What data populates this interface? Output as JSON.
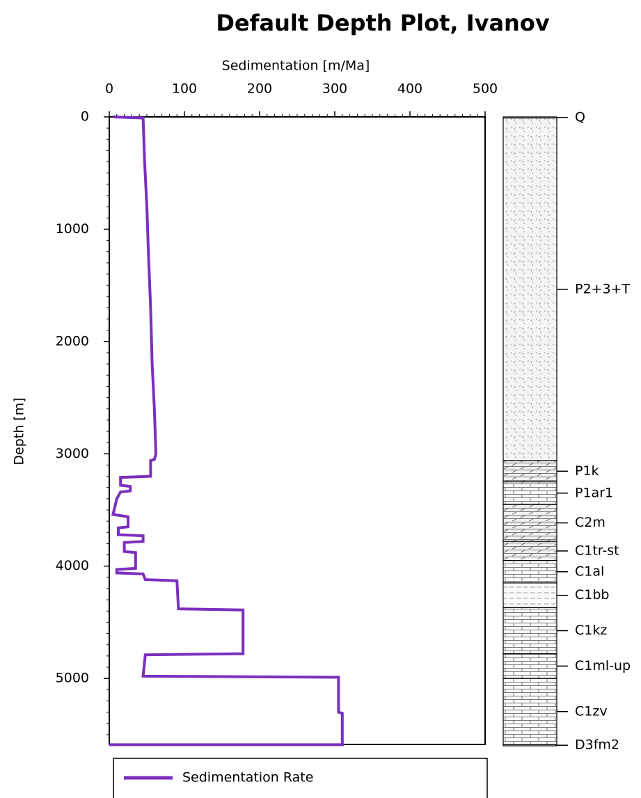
{
  "chart_data": {
    "type": "depth_line",
    "title": "Default Depth Plot, Ivanov",
    "x_label": "Sedimentation [m/Ma]",
    "y_label": "Depth [m]",
    "xlim": [
      0,
      500
    ],
    "xticks": [
      0,
      100,
      200,
      300,
      400,
      500
    ],
    "ylim": [
      0,
      5600
    ],
    "yticks": [
      0,
      1000,
      2000,
      3000,
      4000,
      5000
    ],
    "y_inverted": true,
    "legend": "bottom",
    "depth": [
      0,
      10,
      400,
      800,
      1200,
      1700,
      2200,
      2600,
      3000,
      3050,
      3060,
      3200,
      3210,
      3280,
      3290,
      3330,
      3340,
      3400,
      3540,
      3550,
      3560,
      3650,
      3660,
      3720,
      3730,
      3780,
      3790,
      3870,
      3880,
      4020,
      4030,
      4060,
      4070,
      4120,
      4130,
      4380,
      4390,
      4780,
      4790,
      4980,
      4990,
      5300,
      5310,
      5590,
      5590
    ],
    "series": [
      {
        "name": "Sedimentation Rate",
        "color": "#7b2fbe",
        "values": [
          5,
          45,
          47,
          50,
          52,
          55,
          57,
          60,
          62,
          60,
          55,
          55,
          15,
          15,
          28,
          28,
          15,
          10,
          5,
          15,
          25,
          25,
          12,
          12,
          45,
          45,
          20,
          20,
          35,
          35,
          10,
          10,
          45,
          48,
          90,
          92,
          178,
          178,
          48,
          45,
          305,
          305,
          310,
          310,
          0
        ]
      }
    ],
    "formations": [
      {
        "name": "Q",
        "top": 0,
        "base": 10,
        "lithology": "sand"
      },
      {
        "name": "P2+3+T",
        "top": 10,
        "base": 3060,
        "lithology": "sand"
      },
      {
        "name": "P1k",
        "top": 3060,
        "base": 3250,
        "lithology": "marl"
      },
      {
        "name": "P1ar1",
        "top": 3250,
        "base": 3450,
        "lithology": "limestone"
      },
      {
        "name": "C2m",
        "top": 3450,
        "base": 3780,
        "lithology": "marl"
      },
      {
        "name": "C1tr-st",
        "top": 3780,
        "base": 3950,
        "lithology": "marl"
      },
      {
        "name": "C1al",
        "top": 3950,
        "base": 4150,
        "lithology": "limestone"
      },
      {
        "name": "C1bb",
        "top": 4150,
        "base": 4370,
        "lithology": "shale"
      },
      {
        "name": "C1kz",
        "top": 4370,
        "base": 4780,
        "lithology": "limestone"
      },
      {
        "name": "C1ml-up",
        "top": 4780,
        "base": 5000,
        "lithology": "limestone"
      },
      {
        "name": "C1zv",
        "top": 5000,
        "base": 5590,
        "lithology": "limestone"
      },
      {
        "name": "D3fm2",
        "top": 5590,
        "base": 5600,
        "lithology": "limestone"
      }
    ]
  }
}
